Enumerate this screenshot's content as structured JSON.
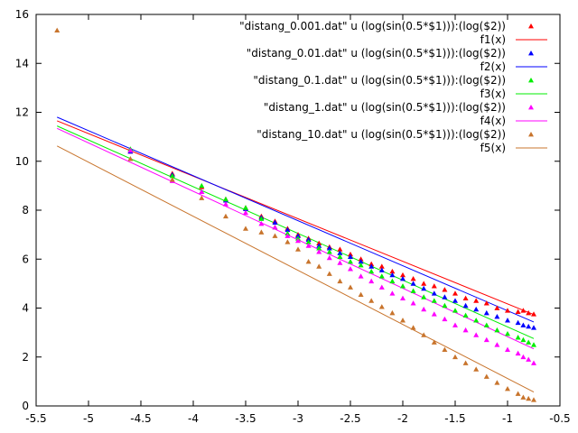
{
  "chart_data": {
    "type": "scatter",
    "xlim": [
      -5.5,
      -0.5
    ],
    "ylim": [
      0,
      16
    ],
    "xticks": [
      -5.5,
      -5,
      -4.5,
      -4,
      -3.5,
      -3,
      -2.5,
      -2,
      -1.5,
      -1,
      -0.5
    ],
    "yticks": [
      0,
      2,
      4,
      6,
      8,
      10,
      12,
      14,
      16
    ],
    "xtick_labels": [
      "-5.5",
      "-5",
      "-4.5",
      "-4",
      "-3.5",
      "-3",
      "-2.5",
      "-2",
      "-1.5",
      "-1",
      "-0.5"
    ],
    "ytick_labels": [
      "0",
      "2",
      "4",
      "6",
      "8",
      "10",
      "12",
      "14",
      "16"
    ],
    "grid": false,
    "legend_position": "top-right",
    "x_range_data": [
      -5.3,
      -0.75
    ],
    "series": [
      {
        "name": "\"distang_0.001.dat\" u (log(sin(0.5*$1))):(log($2))",
        "color": "#ff0000",
        "marker": "triangle",
        "points": [
          [
            -4.6,
            10.4
          ],
          [
            -4.2,
            9.5
          ],
          [
            -3.92,
            8.95
          ],
          [
            -3.69,
            8.45
          ],
          [
            -3.5,
            8.1
          ],
          [
            -3.35,
            7.75
          ],
          [
            -3.22,
            7.55
          ],
          [
            -3.1,
            7.25
          ],
          [
            -3.0,
            7.0
          ],
          [
            -2.9,
            6.85
          ],
          [
            -2.8,
            6.65
          ],
          [
            -2.7,
            6.5
          ],
          [
            -2.6,
            6.4
          ],
          [
            -2.5,
            6.2
          ],
          [
            -2.4,
            6.0
          ],
          [
            -2.3,
            5.8
          ],
          [
            -2.2,
            5.7
          ],
          [
            -2.1,
            5.5
          ],
          [
            -2.0,
            5.35
          ],
          [
            -1.9,
            5.2
          ],
          [
            -1.8,
            5.0
          ],
          [
            -1.7,
            4.9
          ],
          [
            -1.6,
            4.75
          ],
          [
            -1.5,
            4.6
          ],
          [
            -1.4,
            4.4
          ],
          [
            -1.3,
            4.3
          ],
          [
            -1.2,
            4.2
          ],
          [
            -1.1,
            4.0
          ],
          [
            -1.0,
            3.9
          ],
          [
            -0.9,
            3.85
          ],
          [
            -0.85,
            3.9
          ],
          [
            -0.8,
            3.8
          ],
          [
            -0.75,
            3.75
          ]
        ]
      },
      {
        "name": "\"distang_0.01.dat\" u (log(sin(0.5*$1))):(log($2))",
        "color": "#0000ff",
        "marker": "triangle",
        "points": [
          [
            -4.6,
            10.4
          ],
          [
            -4.2,
            9.45
          ],
          [
            -3.92,
            8.75
          ],
          [
            -3.69,
            8.4
          ],
          [
            -3.5,
            8.05
          ],
          [
            -3.35,
            7.7
          ],
          [
            -3.22,
            7.5
          ],
          [
            -3.1,
            7.2
          ],
          [
            -3.0,
            6.95
          ],
          [
            -2.9,
            6.8
          ],
          [
            -2.8,
            6.55
          ],
          [
            -2.7,
            6.45
          ],
          [
            -2.6,
            6.25
          ],
          [
            -2.5,
            6.1
          ],
          [
            -2.4,
            5.9
          ],
          [
            -2.3,
            5.7
          ],
          [
            -2.2,
            5.55
          ],
          [
            -2.1,
            5.35
          ],
          [
            -2.0,
            5.2
          ],
          [
            -1.9,
            5.0
          ],
          [
            -1.8,
            4.8
          ],
          [
            -1.7,
            4.6
          ],
          [
            -1.6,
            4.45
          ],
          [
            -1.5,
            4.3
          ],
          [
            -1.4,
            4.1
          ],
          [
            -1.3,
            3.95
          ],
          [
            -1.2,
            3.8
          ],
          [
            -1.1,
            3.65
          ],
          [
            -1.0,
            3.5
          ],
          [
            -0.9,
            3.4
          ],
          [
            -0.85,
            3.3
          ],
          [
            -0.8,
            3.25
          ],
          [
            -0.75,
            3.2
          ]
        ]
      },
      {
        "name": "\"distang_0.1.dat\" u (log(sin(0.5*$1))):(log($2))",
        "color": "#00ee00",
        "marker": "triangle",
        "points": [
          [
            -4.6,
            10.5
          ],
          [
            -4.2,
            9.4
          ],
          [
            -3.92,
            9.0
          ],
          [
            -3.69,
            8.45
          ],
          [
            -3.5,
            8.1
          ],
          [
            -3.35,
            7.65
          ],
          [
            -3.22,
            7.3
          ],
          [
            -3.1,
            7.05
          ],
          [
            -3.0,
            6.85
          ],
          [
            -2.9,
            6.7
          ],
          [
            -2.8,
            6.45
          ],
          [
            -2.7,
            6.3
          ],
          [
            -2.6,
            6.1
          ],
          [
            -2.5,
            5.9
          ],
          [
            -2.4,
            5.75
          ],
          [
            -2.3,
            5.5
          ],
          [
            -2.2,
            5.3
          ],
          [
            -2.1,
            5.1
          ],
          [
            -2.0,
            4.9
          ],
          [
            -1.9,
            4.7
          ],
          [
            -1.8,
            4.45
          ],
          [
            -1.7,
            4.3
          ],
          [
            -1.6,
            4.1
          ],
          [
            -1.5,
            3.9
          ],
          [
            -1.4,
            3.7
          ],
          [
            -1.3,
            3.5
          ],
          [
            -1.2,
            3.3
          ],
          [
            -1.1,
            3.1
          ],
          [
            -1.0,
            2.95
          ],
          [
            -0.9,
            2.8
          ],
          [
            -0.85,
            2.7
          ],
          [
            -0.8,
            2.6
          ],
          [
            -0.75,
            2.5
          ]
        ]
      },
      {
        "name": "\"distang_1.dat\" u (log(sin(0.5*$1))):(log($2))",
        "color": "#ff00ff",
        "marker": "triangle",
        "points": [
          [
            -4.6,
            10.45
          ],
          [
            -4.2,
            9.2
          ],
          [
            -3.92,
            8.75
          ],
          [
            -3.69,
            8.25
          ],
          [
            -3.5,
            7.9
          ],
          [
            -3.35,
            7.45
          ],
          [
            -3.22,
            7.3
          ],
          [
            -3.1,
            6.95
          ],
          [
            -3.0,
            6.75
          ],
          [
            -2.9,
            6.55
          ],
          [
            -2.8,
            6.3
          ],
          [
            -2.7,
            6.05
          ],
          [
            -2.6,
            5.85
          ],
          [
            -2.5,
            5.6
          ],
          [
            -2.4,
            5.3
          ],
          [
            -2.3,
            5.1
          ],
          [
            -2.2,
            4.85
          ],
          [
            -2.1,
            4.6
          ],
          [
            -2.0,
            4.4
          ],
          [
            -1.9,
            4.2
          ],
          [
            -1.8,
            3.95
          ],
          [
            -1.7,
            3.75
          ],
          [
            -1.6,
            3.55
          ],
          [
            -1.5,
            3.3
          ],
          [
            -1.4,
            3.1
          ],
          [
            -1.3,
            2.9
          ],
          [
            -1.2,
            2.7
          ],
          [
            -1.1,
            2.5
          ],
          [
            -1.0,
            2.3
          ],
          [
            -0.9,
            2.15
          ],
          [
            -0.85,
            2.0
          ],
          [
            -0.8,
            1.9
          ],
          [
            -0.75,
            1.75
          ]
        ]
      },
      {
        "name": "\"distang_10.dat\" u (log(sin(0.5*$1))):(log($2))",
        "color": "#c8742c",
        "marker": "triangle",
        "points": [
          [
            -5.3,
            15.35
          ],
          [
            -4.6,
            10.1
          ],
          [
            -4.2,
            9.25
          ],
          [
            -3.92,
            8.5
          ],
          [
            -3.69,
            7.75
          ],
          [
            -3.5,
            7.25
          ],
          [
            -3.35,
            7.1
          ],
          [
            -3.22,
            6.95
          ],
          [
            -3.1,
            6.7
          ],
          [
            -3.0,
            6.4
          ],
          [
            -2.9,
            5.9
          ],
          [
            -2.8,
            5.7
          ],
          [
            -2.7,
            5.4
          ],
          [
            -2.6,
            5.1
          ],
          [
            -2.5,
            4.85
          ],
          [
            -2.4,
            4.55
          ],
          [
            -2.3,
            4.3
          ],
          [
            -2.2,
            4.05
          ],
          [
            -2.1,
            3.8
          ],
          [
            -2.0,
            3.5
          ],
          [
            -1.9,
            3.2
          ],
          [
            -1.8,
            2.9
          ],
          [
            -1.7,
            2.6
          ],
          [
            -1.6,
            2.3
          ],
          [
            -1.5,
            2.0
          ],
          [
            -1.4,
            1.75
          ],
          [
            -1.3,
            1.5
          ],
          [
            -1.2,
            1.2
          ],
          [
            -1.1,
            0.95
          ],
          [
            -1.0,
            0.7
          ],
          [
            -0.9,
            0.5
          ],
          [
            -0.85,
            0.35
          ],
          [
            -0.8,
            0.3
          ],
          [
            -0.75,
            0.25
          ]
        ]
      },
      {
        "name": "f1(x)",
        "color": "#ff0000",
        "type": "line",
        "fit": {
          "a": -1.74,
          "b": 2.43
        }
      },
      {
        "name": "f2(x)",
        "color": "#0000ff",
        "type": "line",
        "fit": {
          "a": -1.84,
          "b": 2.05
        }
      },
      {
        "name": "f3(x)",
        "color": "#00ee00",
        "type": "line",
        "fit": {
          "a": -1.91,
          "b": 1.32
        }
      },
      {
        "name": "f4(x)",
        "color": "#ff00ff",
        "type": "line",
        "fit": {
          "a": -1.98,
          "b": 0.85
        }
      },
      {
        "name": "f5(x)",
        "color": "#c8742c",
        "type": "line",
        "fit": {
          "a": -2.21,
          "b": -1.09
        }
      }
    ]
  }
}
